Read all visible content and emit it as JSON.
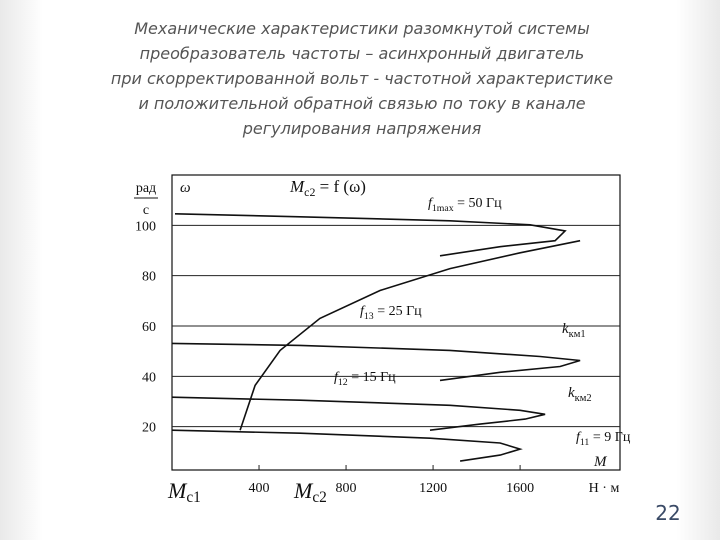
{
  "slide": {
    "title_lines": [
      "Механические характеристики разомкнутой системы",
      "преобразователь частоты – асинхронный двигатель",
      "при скорректированной вольт - частотной характеристике",
      "и положительной обратной связью по току в канале",
      "регулирования напряжения"
    ],
    "page_number": "22"
  },
  "chart_data": {
    "type": "line",
    "y_label": {
      "num": "рад",
      "den": "с"
    },
    "x_unit": "Н · м",
    "xlim": [
      0,
      2050
    ],
    "ylim": [
      0,
      120
    ],
    "xticks": [
      400,
      800,
      1200,
      1600
    ],
    "yticks": [
      20,
      40,
      60,
      80,
      100
    ],
    "grid": true,
    "color": "#111111",
    "series": [
      {
        "x": [
          14,
          589,
          1278,
          1646,
          1807,
          1761,
          1508,
          1232
        ],
        "values": [
          104.6,
          103.4,
          101.8,
          100.2,
          97.8,
          93.9,
          91.5,
          87.9
        ]
      },
      {
        "x": [
          0,
          589,
          1278,
          1692,
          1876,
          1784,
          1508,
          1232
        ],
        "values": [
          53.1,
          52.3,
          50.3,
          47.9,
          46.3,
          43.9,
          41.6,
          38.4
        ]
      },
      {
        "x": [
          0,
          589,
          1278,
          1600,
          1715,
          1623,
          1416,
          1186
        ],
        "values": [
          31.7,
          30.5,
          28.5,
          26.5,
          24.9,
          23.0,
          21.0,
          18.6
        ]
      },
      {
        "x": [
          0,
          589,
          1186,
          1508,
          1600,
          1508,
          1324
        ],
        "values": [
          18.6,
          17.4,
          15.4,
          13.5,
          11.1,
          8.7,
          6.3
        ]
      },
      {
        "x": [
          313,
          382,
          497,
          680,
          956,
          1278,
          1600,
          1876
        ],
        "values": [
          18.6,
          36.4,
          50.3,
          63.0,
          74.1,
          82.8,
          89.1,
          93.9
        ]
      }
    ],
    "annotations": [
      {
        "main": "ω"
      },
      {
        "main": "M",
        "sub": "с2",
        "rest": " = f (ω)"
      },
      {
        "main": "f",
        "sub": "1max",
        "rest": " = 50 Гц"
      },
      {
        "main": "f",
        "sub": "13",
        "rest": " = 25 Гц"
      },
      {
        "main": "k",
        "sub": "км1"
      },
      {
        "main": "f",
        "sub": "12",
        "rest": " = 15 Гц"
      },
      {
        "main": "k",
        "sub": "км2"
      },
      {
        "main": "f",
        "sub": "11",
        "rest": " = 9 Гц"
      },
      {
        "main": "M"
      },
      {
        "main": "M",
        "sub": "с1"
      },
      {
        "main": "M",
        "sub": "с2"
      }
    ]
  }
}
